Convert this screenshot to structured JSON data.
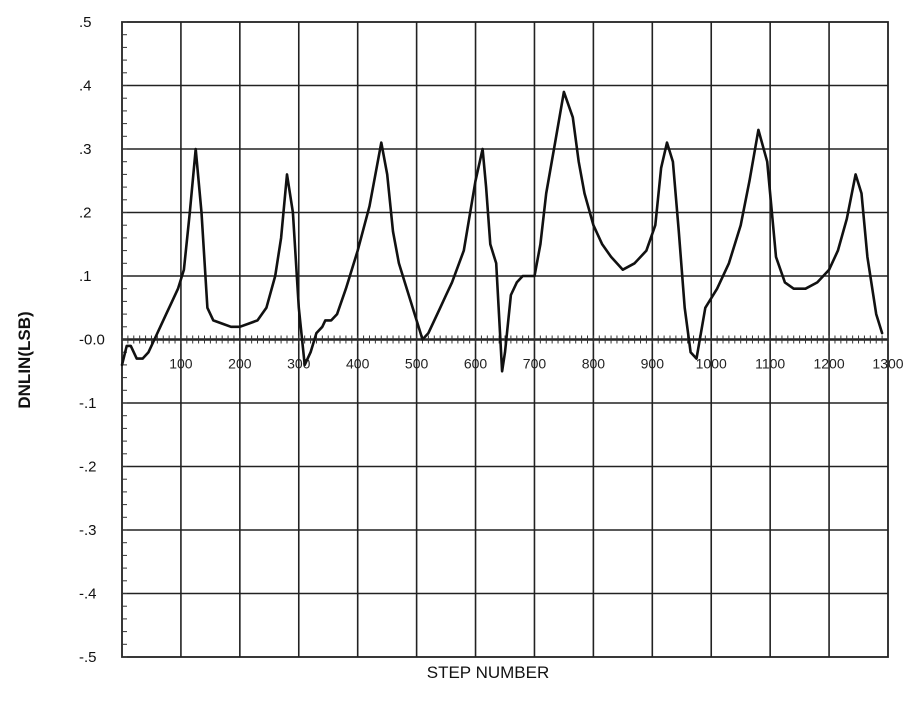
{
  "chart_data": {
    "type": "line",
    "title": "",
    "xlabel": "STEP NUMBER",
    "ylabel": "DNLIN(LSB)",
    "xlim": [
      0,
      1300
    ],
    "ylim": [
      -0.5,
      0.5
    ],
    "grid": true,
    "x_ticks": [
      100,
      200,
      300,
      400,
      500,
      600,
      700,
      800,
      900,
      1000,
      1100,
      1200,
      1300
    ],
    "x_tick_labels": [
      "100",
      "200",
      "300",
      "400",
      "500",
      "600",
      "700",
      "800",
      "900",
      "1000",
      "1100",
      "1200",
      "1300"
    ],
    "y_ticks": [
      0.5,
      0.4,
      0.3,
      0.2,
      0.1,
      0.0,
      -0.1,
      -0.2,
      -0.3,
      -0.4,
      -0.5
    ],
    "y_tick_labels": [
      ".5",
      ".4",
      ".3",
      ".2",
      ".1",
      "-0.0",
      "-.1",
      "-.2",
      "-.3",
      "-.4",
      "-.5"
    ],
    "series": [
      {
        "x": [
          0,
          8,
          15,
          25,
          35,
          45,
          55,
          65,
          75,
          85,
          95,
          105,
          115,
          125,
          135,
          145,
          155,
          170,
          185,
          200,
          215,
          230,
          245,
          260,
          270,
          280,
          290,
          300,
          310,
          320,
          330,
          340,
          345,
          355,
          365,
          380,
          400,
          420,
          440,
          450,
          460,
          470,
          480,
          490,
          500,
          510,
          520,
          530,
          540,
          550,
          560,
          580,
          600,
          612,
          618,
          625,
          635,
          645,
          650,
          660,
          670,
          680,
          690,
          700,
          710,
          720,
          735,
          750,
          765,
          775,
          785,
          800,
          815,
          830,
          850,
          870,
          890,
          905,
          915,
          925,
          935,
          945,
          955,
          965,
          975,
          990,
          1010,
          1030,
          1050,
          1065,
          1080,
          1095,
          1110,
          1125,
          1140,
          1160,
          1180,
          1200,
          1215,
          1230,
          1245,
          1255,
          1265,
          1280,
          1290
        ],
        "values": [
          -0.04,
          -0.01,
          -0.01,
          -0.03,
          -0.03,
          -0.02,
          0.0,
          0.02,
          0.04,
          0.06,
          0.08,
          0.11,
          0.2,
          0.3,
          0.2,
          0.05,
          0.03,
          0.025,
          0.02,
          0.02,
          0.025,
          0.03,
          0.05,
          0.1,
          0.16,
          0.26,
          0.2,
          0.05,
          -0.04,
          -0.02,
          0.01,
          0.02,
          0.03,
          0.03,
          0.04,
          0.08,
          0.14,
          0.21,
          0.31,
          0.26,
          0.17,
          0.12,
          0.09,
          0.06,
          0.03,
          0.0,
          0.01,
          0.03,
          0.05,
          0.07,
          0.09,
          0.14,
          0.25,
          0.3,
          0.24,
          0.15,
          0.12,
          -0.05,
          -0.02,
          0.07,
          0.09,
          0.1,
          0.1,
          0.1,
          0.15,
          0.23,
          0.31,
          0.39,
          0.35,
          0.28,
          0.23,
          0.18,
          0.15,
          0.13,
          0.11,
          0.12,
          0.14,
          0.18,
          0.27,
          0.31,
          0.28,
          0.17,
          0.05,
          -0.02,
          -0.03,
          0.05,
          0.08,
          0.12,
          0.18,
          0.25,
          0.33,
          0.28,
          0.13,
          0.09,
          0.08,
          0.08,
          0.09,
          0.11,
          0.14,
          0.19,
          0.26,
          0.23,
          0.13,
          0.04,
          0.01
        ]
      }
    ]
  }
}
